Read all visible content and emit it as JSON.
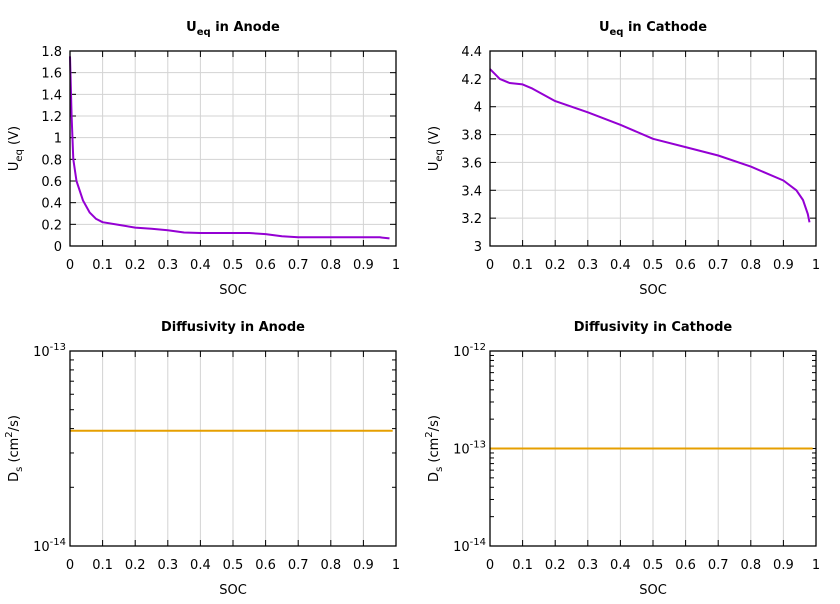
{
  "chart_data": [
    {
      "type": "line",
      "title": {
        "main": "U",
        "sub": "eq",
        "rest": " in Anode"
      },
      "xlabel": "SOC",
      "ylabel": {
        "main": "U",
        "sub": "eq",
        "rest": " (V)"
      },
      "xlim": [
        0,
        1
      ],
      "ylim": [
        0,
        1.8
      ],
      "yscale": "linear",
      "grid": true,
      "xticks": [
        "0",
        "0.1",
        "0.2",
        "0.3",
        "0.4",
        "0.5",
        "0.6",
        "0.7",
        "0.8",
        "0.9",
        "1"
      ],
      "yticks": [
        "0",
        "0.2",
        "0.4",
        "0.6",
        "0.8",
        "1",
        "1.2",
        "1.4",
        "1.6",
        "1.8"
      ],
      "color": "#9400d3",
      "x": [
        0,
        0.005,
        0.01,
        0.02,
        0.04,
        0.06,
        0.08,
        0.1,
        0.15,
        0.2,
        0.25,
        0.3,
        0.35,
        0.4,
        0.5,
        0.55,
        0.6,
        0.65,
        0.7,
        0.8,
        0.9,
        0.95,
        0.98
      ],
      "y": [
        1.75,
        1.2,
        0.8,
        0.6,
        0.42,
        0.31,
        0.25,
        0.22,
        0.195,
        0.17,
        0.16,
        0.145,
        0.125,
        0.12,
        0.12,
        0.12,
        0.11,
        0.09,
        0.08,
        0.08,
        0.08,
        0.08,
        0.07
      ]
    },
    {
      "type": "line",
      "title": {
        "main": "U",
        "sub": "eq",
        "rest": " in Cathode"
      },
      "xlabel": "SOC",
      "ylabel": {
        "main": "U",
        "sub": "eq",
        "rest": " (V)"
      },
      "xlim": [
        0,
        1
      ],
      "ylim": [
        3,
        4.4
      ],
      "yscale": "linear",
      "grid": true,
      "xticks": [
        "0",
        "0.1",
        "0.2",
        "0.3",
        "0.4",
        "0.5",
        "0.6",
        "0.7",
        "0.8",
        "0.9",
        "1"
      ],
      "yticks": [
        "3",
        "3.2",
        "3.4",
        "3.6",
        "3.8",
        "4",
        "4.2",
        "4.4"
      ],
      "color": "#9400d3",
      "x": [
        0,
        0.03,
        0.06,
        0.1,
        0.13,
        0.2,
        0.3,
        0.4,
        0.5,
        0.6,
        0.7,
        0.8,
        0.9,
        0.94,
        0.96,
        0.975,
        0.98
      ],
      "y": [
        4.27,
        4.2,
        4.17,
        4.16,
        4.13,
        4.04,
        3.96,
        3.87,
        3.77,
        3.71,
        3.65,
        3.57,
        3.47,
        3.4,
        3.33,
        3.23,
        3.17
      ]
    },
    {
      "type": "line",
      "title": {
        "main": "Diffusivity in Anode",
        "sub": "",
        "rest": ""
      },
      "xlabel": "SOC",
      "ylabel": {
        "main": "D",
        "sub": "s",
        "rest": " (cm",
        "sup": "2",
        "rest2": "/s)"
      },
      "xlim": [
        0,
        1
      ],
      "ylim": [
        1e-14,
        1e-13
      ],
      "yscale": "log",
      "grid": true,
      "xticks": [
        "0",
        "0.1",
        "0.2",
        "0.3",
        "0.4",
        "0.5",
        "0.6",
        "0.7",
        "0.8",
        "0.9",
        "1"
      ],
      "yticks": [
        {
          "base": "10",
          "exp": "-14"
        },
        {
          "base": "10",
          "exp": "-13"
        }
      ],
      "color": "#e69f00",
      "x": [
        0,
        0.99
      ],
      "y": [
        3.9e-14,
        3.9e-14
      ]
    },
    {
      "type": "line",
      "title": {
        "main": "Diffusivity in Cathode",
        "sub": "",
        "rest": ""
      },
      "xlabel": "SOC",
      "ylabel": {
        "main": "D",
        "sub": "s",
        "rest": " (cm",
        "sup": "2",
        "rest2": "/s)"
      },
      "xlim": [
        0,
        1
      ],
      "ylim": [
        1e-14,
        1e-12
      ],
      "yscale": "log",
      "grid": true,
      "xticks": [
        "0",
        "0.1",
        "0.2",
        "0.3",
        "0.4",
        "0.5",
        "0.6",
        "0.7",
        "0.8",
        "0.9",
        "1"
      ],
      "yticks": [
        {
          "base": "10",
          "exp": "-14"
        },
        {
          "base": "10",
          "exp": "-13"
        },
        {
          "base": "10",
          "exp": "-12"
        }
      ],
      "color": "#e69f00",
      "x": [
        0,
        0.99
      ],
      "y": [
        1e-13,
        1e-13
      ]
    }
  ]
}
